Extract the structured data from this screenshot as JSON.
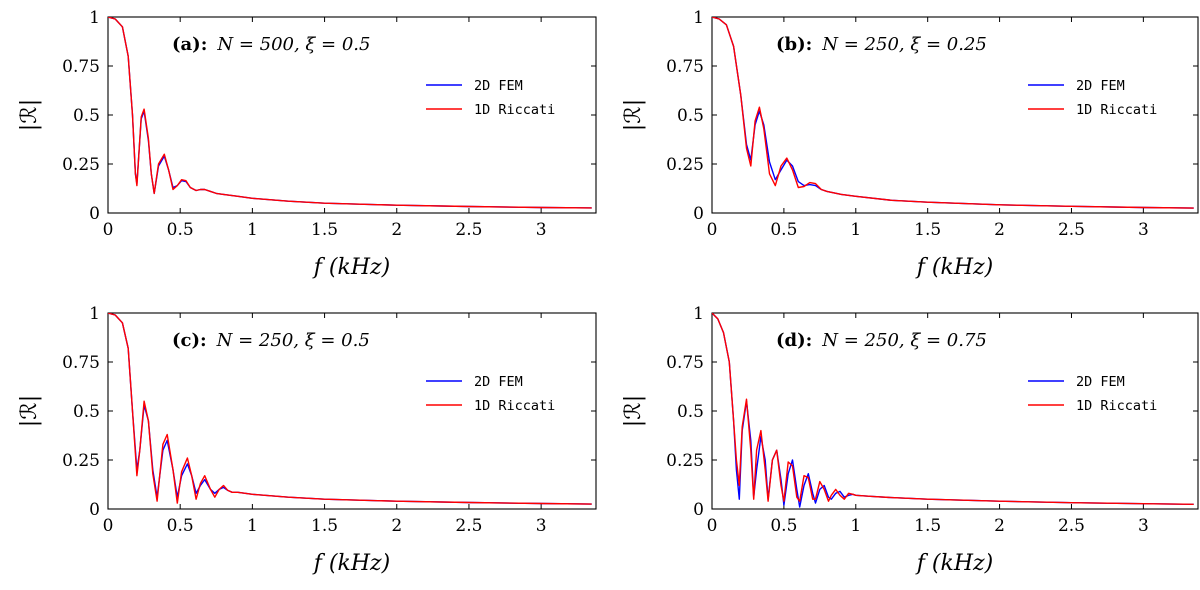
{
  "figure": {
    "colors": {
      "fem": "#0000ff",
      "riccati": "#ff0000",
      "axis": "#000000"
    }
  },
  "chart_data": [
    {
      "type": "line",
      "panel": "a",
      "title_tag": "(a):",
      "title_params": "N = 500, ξ = 0.5",
      "xlabel": "f (kHz)",
      "ylabel": "|ℛ|",
      "xlim": [
        0,
        3.38
      ],
      "ylim": [
        0,
        1
      ],
      "xticks": [
        0,
        0.5,
        1,
        1.5,
        2,
        2.5,
        3
      ],
      "xtick_labels": [
        "0",
        "0.5",
        "1",
        "1.5",
        "2",
        "2.5",
        "3"
      ],
      "yticks": [
        0,
        0.25,
        0.5,
        0.75,
        1
      ],
      "ytick_labels": [
        "0",
        "0.25",
        "0.5",
        "0.75",
        "1"
      ],
      "legend": {
        "position": "top-right",
        "entries": [
          "2D FEM",
          "1D Riccati"
        ]
      },
      "series": [
        {
          "name": "2D FEM",
          "color": "#0000ff",
          "x": [
            0,
            0.05,
            0.1,
            0.14,
            0.17,
            0.19,
            0.2,
            0.23,
            0.25,
            0.28,
            0.3,
            0.32,
            0.35,
            0.39,
            0.42,
            0.45,
            0.48,
            0.51,
            0.54,
            0.57,
            0.61,
            0.64,
            0.67,
            0.71,
            0.75,
            0.8,
            0.9,
            1.0,
            1.25,
            1.5,
            2.0,
            2.5,
            3.0,
            3.35
          ],
          "y": [
            1,
            0.99,
            0.95,
            0.8,
            0.5,
            0.2,
            0.15,
            0.48,
            0.52,
            0.37,
            0.2,
            0.1,
            0.24,
            0.29,
            0.22,
            0.13,
            0.14,
            0.165,
            0.16,
            0.13,
            0.115,
            0.12,
            0.12,
            0.11,
            0.1,
            0.095,
            0.085,
            0.075,
            0.06,
            0.05,
            0.04,
            0.033,
            0.028,
            0.026
          ]
        },
        {
          "name": "1D Riccati",
          "color": "#ff0000",
          "x": [
            0,
            0.05,
            0.1,
            0.14,
            0.17,
            0.19,
            0.2,
            0.23,
            0.25,
            0.28,
            0.3,
            0.32,
            0.35,
            0.39,
            0.42,
            0.45,
            0.48,
            0.51,
            0.54,
            0.57,
            0.61,
            0.64,
            0.67,
            0.71,
            0.75,
            0.8,
            0.9,
            1.0,
            1.25,
            1.5,
            2.0,
            2.5,
            3.0,
            3.35
          ],
          "y": [
            1,
            0.99,
            0.95,
            0.8,
            0.5,
            0.2,
            0.14,
            0.49,
            0.53,
            0.38,
            0.2,
            0.1,
            0.25,
            0.3,
            0.22,
            0.12,
            0.14,
            0.17,
            0.165,
            0.13,
            0.115,
            0.12,
            0.12,
            0.11,
            0.1,
            0.095,
            0.085,
            0.075,
            0.06,
            0.05,
            0.04,
            0.033,
            0.028,
            0.026
          ]
        }
      ]
    },
    {
      "type": "line",
      "panel": "b",
      "title_tag": "(b):",
      "title_params": "N = 250, ξ = 0.25",
      "xlabel": "f (kHz)",
      "ylabel": "|ℛ|",
      "xlim": [
        0,
        3.38
      ],
      "ylim": [
        0,
        1
      ],
      "xticks": [
        0,
        0.5,
        1,
        1.5,
        2,
        2.5,
        3
      ],
      "xtick_labels": [
        "0",
        "0.5",
        "1",
        "1.5",
        "2",
        "2.5",
        "3"
      ],
      "yticks": [
        0,
        0.25,
        0.5,
        0.75,
        1
      ],
      "ytick_labels": [
        "0",
        "0.25",
        "0.5",
        "0.75",
        "1"
      ],
      "legend": {
        "position": "top-right",
        "entries": [
          "2D FEM",
          "1D Riccati"
        ]
      },
      "series": [
        {
          "name": "2D FEM",
          "color": "#0000ff",
          "x": [
            0,
            0.05,
            0.1,
            0.15,
            0.2,
            0.24,
            0.27,
            0.3,
            0.33,
            0.36,
            0.4,
            0.44,
            0.48,
            0.52,
            0.56,
            0.6,
            0.64,
            0.68,
            0.72,
            0.76,
            0.8,
            0.9,
            1.0,
            1.25,
            1.5,
            2.0,
            2.5,
            3.0,
            3.35
          ],
          "y": [
            1,
            0.99,
            0.96,
            0.85,
            0.6,
            0.35,
            0.27,
            0.45,
            0.52,
            0.45,
            0.26,
            0.17,
            0.22,
            0.27,
            0.24,
            0.16,
            0.14,
            0.145,
            0.14,
            0.12,
            0.11,
            0.095,
            0.085,
            0.065,
            0.055,
            0.042,
            0.034,
            0.028,
            0.025
          ]
        },
        {
          "name": "1D Riccati",
          "color": "#ff0000",
          "x": [
            0,
            0.05,
            0.1,
            0.15,
            0.2,
            0.24,
            0.27,
            0.3,
            0.33,
            0.36,
            0.4,
            0.44,
            0.48,
            0.52,
            0.56,
            0.6,
            0.64,
            0.68,
            0.72,
            0.76,
            0.8,
            0.9,
            1.0,
            1.25,
            1.5,
            2.0,
            2.5,
            3.0,
            3.35
          ],
          "y": [
            1,
            0.99,
            0.96,
            0.85,
            0.6,
            0.33,
            0.24,
            0.47,
            0.54,
            0.43,
            0.2,
            0.14,
            0.24,
            0.28,
            0.22,
            0.13,
            0.135,
            0.155,
            0.15,
            0.12,
            0.11,
            0.095,
            0.085,
            0.065,
            0.055,
            0.042,
            0.034,
            0.028,
            0.025
          ]
        }
      ]
    },
    {
      "type": "line",
      "panel": "c",
      "title_tag": "(c):",
      "title_params": "N = 250, ξ = 0.5",
      "xlabel": "f (kHz)",
      "ylabel": "|ℛ|",
      "xlim": [
        0,
        3.38
      ],
      "ylim": [
        0,
        1
      ],
      "xticks": [
        0,
        0.5,
        1,
        1.5,
        2,
        2.5,
        3
      ],
      "xtick_labels": [
        "0",
        "0.5",
        "1",
        "1.5",
        "2",
        "2.5",
        "3"
      ],
      "yticks": [
        0,
        0.25,
        0.5,
        0.75,
        1
      ],
      "ytick_labels": [
        "0",
        "0.25",
        "0.5",
        "0.75",
        "1"
      ],
      "legend": {
        "position": "top-right",
        "entries": [
          "2D FEM",
          "1D Riccati"
        ]
      },
      "series": [
        {
          "name": "2D FEM",
          "color": "#0000ff",
          "x": [
            0,
            0.05,
            0.1,
            0.14,
            0.17,
            0.2,
            0.22,
            0.25,
            0.28,
            0.31,
            0.34,
            0.38,
            0.41,
            0.45,
            0.48,
            0.51,
            0.55,
            0.58,
            0.61,
            0.64,
            0.67,
            0.71,
            0.74,
            0.77,
            0.8,
            0.83,
            0.86,
            0.9,
            0.95,
            1.0,
            1.25,
            1.5,
            2.0,
            2.5,
            3.0,
            3.35
          ],
          "y": [
            1,
            0.99,
            0.95,
            0.82,
            0.5,
            0.2,
            0.3,
            0.53,
            0.45,
            0.2,
            0.06,
            0.3,
            0.35,
            0.2,
            0.06,
            0.17,
            0.23,
            0.17,
            0.08,
            0.12,
            0.15,
            0.1,
            0.08,
            0.1,
            0.11,
            0.095,
            0.085,
            0.085,
            0.08,
            0.075,
            0.06,
            0.05,
            0.04,
            0.033,
            0.028,
            0.025
          ]
        },
        {
          "name": "1D Riccati",
          "color": "#ff0000",
          "x": [
            0,
            0.05,
            0.1,
            0.14,
            0.17,
            0.2,
            0.22,
            0.25,
            0.28,
            0.31,
            0.34,
            0.38,
            0.41,
            0.45,
            0.48,
            0.51,
            0.55,
            0.58,
            0.61,
            0.64,
            0.67,
            0.71,
            0.74,
            0.77,
            0.8,
            0.83,
            0.86,
            0.9,
            0.95,
            1.0,
            1.25,
            1.5,
            2.0,
            2.5,
            3.0,
            3.35
          ],
          "y": [
            1,
            0.99,
            0.95,
            0.82,
            0.5,
            0.17,
            0.3,
            0.55,
            0.45,
            0.18,
            0.04,
            0.33,
            0.38,
            0.2,
            0.03,
            0.19,
            0.26,
            0.17,
            0.05,
            0.13,
            0.17,
            0.1,
            0.06,
            0.1,
            0.12,
            0.095,
            0.085,
            0.085,
            0.08,
            0.075,
            0.06,
            0.05,
            0.04,
            0.033,
            0.028,
            0.025
          ]
        }
      ]
    },
    {
      "type": "line",
      "panel": "d",
      "title_tag": "(d):",
      "title_params": "N = 250, ξ = 0.75",
      "xlabel": "f (kHz)",
      "ylabel": "|ℛ|",
      "xlim": [
        0,
        3.38
      ],
      "ylim": [
        0,
        1
      ],
      "xticks": [
        0,
        0.5,
        1,
        1.5,
        2,
        2.5,
        3
      ],
      "xtick_labels": [
        "0",
        "0.5",
        "1",
        "1.5",
        "2",
        "2.5",
        "3"
      ],
      "yticks": [
        0,
        0.25,
        0.5,
        0.75,
        1
      ],
      "ytick_labels": [
        "0",
        "0.25",
        "0.5",
        "0.75",
        "1"
      ],
      "legend": {
        "position": "top-right",
        "entries": [
          "2D FEM",
          "1D Riccati"
        ]
      },
      "series": [
        {
          "name": "2D FEM",
          "color": "#0000ff",
          "x": [
            0,
            0.04,
            0.08,
            0.12,
            0.15,
            0.17,
            0.19,
            0.21,
            0.24,
            0.27,
            0.29,
            0.31,
            0.34,
            0.37,
            0.39,
            0.42,
            0.45,
            0.48,
            0.5,
            0.53,
            0.56,
            0.59,
            0.61,
            0.64,
            0.67,
            0.7,
            0.72,
            0.75,
            0.78,
            0.81,
            0.83,
            0.86,
            0.89,
            0.92,
            0.95,
            0.98,
            1.0,
            1.1,
            1.25,
            1.5,
            2.0,
            2.5,
            3.0,
            3.35
          ],
          "y": [
            1,
            0.97,
            0.9,
            0.75,
            0.45,
            0.2,
            0.05,
            0.4,
            0.55,
            0.35,
            0.06,
            0.2,
            0.37,
            0.25,
            0.05,
            0.25,
            0.3,
            0.15,
            0.02,
            0.18,
            0.25,
            0.1,
            0.01,
            0.12,
            0.18,
            0.08,
            0.03,
            0.1,
            0.12,
            0.06,
            0.05,
            0.08,
            0.09,
            0.06,
            0.07,
            0.075,
            0.07,
            0.065,
            0.058,
            0.05,
            0.04,
            0.032,
            0.027,
            0.024
          ]
        },
        {
          "name": "1D Riccati",
          "color": "#ff0000",
          "x": [
            0,
            0.04,
            0.08,
            0.12,
            0.15,
            0.17,
            0.19,
            0.21,
            0.24,
            0.27,
            0.29,
            0.31,
            0.34,
            0.37,
            0.39,
            0.42,
            0.45,
            0.48,
            0.5,
            0.53,
            0.56,
            0.59,
            0.61,
            0.64,
            0.67,
            0.7,
            0.72,
            0.75,
            0.78,
            0.81,
            0.83,
            0.86,
            0.89,
            0.92,
            0.95,
            0.98,
            1.0,
            1.1,
            1.25,
            1.5,
            2.0,
            2.5,
            3.0,
            3.35
          ],
          "y": [
            1,
            0.97,
            0.9,
            0.75,
            0.45,
            0.25,
            0.12,
            0.42,
            0.56,
            0.3,
            0.05,
            0.3,
            0.4,
            0.2,
            0.04,
            0.25,
            0.3,
            0.12,
            0.04,
            0.24,
            0.22,
            0.06,
            0.04,
            0.17,
            0.16,
            0.05,
            0.05,
            0.14,
            0.1,
            0.04,
            0.07,
            0.1,
            0.07,
            0.05,
            0.08,
            0.075,
            0.07,
            0.065,
            0.058,
            0.05,
            0.04,
            0.032,
            0.027,
            0.024
          ]
        }
      ]
    }
  ]
}
